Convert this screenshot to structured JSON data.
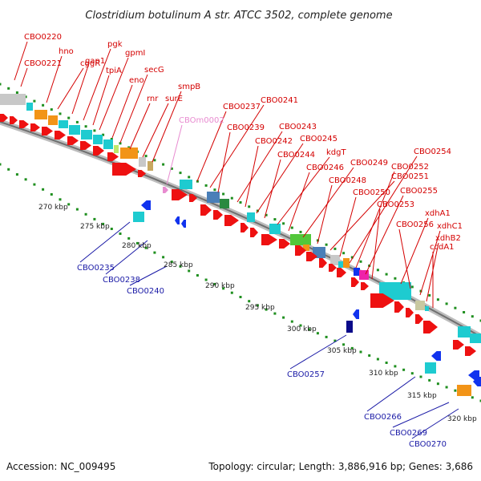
{
  "title": "Clostridium botulinum A str. ATCC 3502, complete genome",
  "footer": {
    "accession": "Accession: NC_009495",
    "topology": "Topology: circular; Length: 3,886,916 bp; Genes: 3,686"
  },
  "colors": {
    "forward_label": "#d40000",
    "reverse_label": "#1a1aa6",
    "rna_label": "#e88bd0",
    "forward_arrow": "#ee1111",
    "reverse_arrow": "#1133ee",
    "backbone": "#999999",
    "gc_dots": "#1f8f1f"
  },
  "ticks": [
    "270 kbp",
    "275 kbp",
    "280 kbp",
    "285 kbp",
    "290 kbp",
    "295 kbp",
    "300 kbp",
    "305 kbp",
    "310 kbp",
    "315 kbp",
    "320 kbp"
  ],
  "forward_labels": [
    "CBO0220",
    "CBO0221",
    "hno",
    "cggR",
    "gap1",
    "pgk",
    "tpiA",
    "gpmI",
    "eno",
    "secG",
    "rnr",
    "surE",
    "smpB",
    "CBO0237",
    "CBO0241",
    "CBO0239",
    "CBO0243",
    "CBO0242",
    "CBO0245",
    "CBO0244",
    "kdgT",
    "CBO0246",
    "CBO0249",
    "CBO0248",
    "CBO0251",
    "CBO0250",
    "CBO0254",
    "CBO0252",
    "CBO0255",
    "CBO0253",
    "xdhA1",
    "CBO0256",
    "xdhC1",
    "xdhB2",
    "ccdA1"
  ],
  "rna_labels": [
    "CBOm0002"
  ],
  "reverse_labels": [
    "CBO0235",
    "CBO0238",
    "CBO0240",
    "CBO0257",
    "CBO0266",
    "CBO0269",
    "CBO0270"
  ]
}
